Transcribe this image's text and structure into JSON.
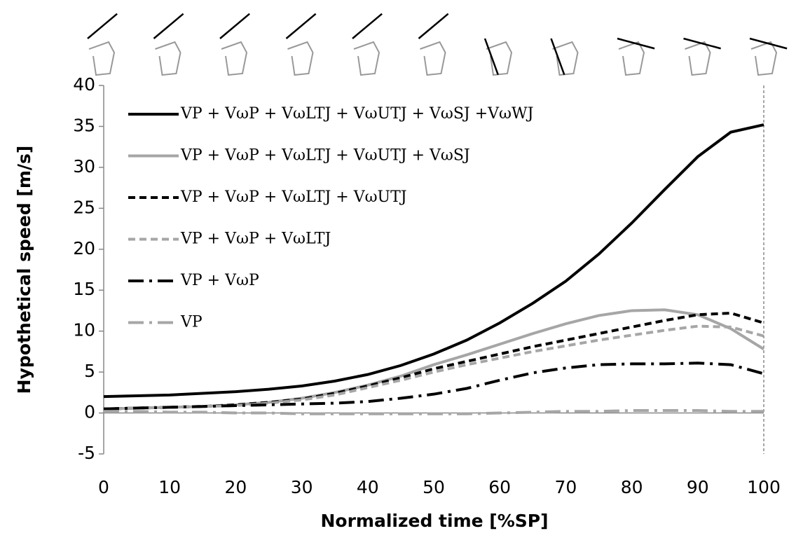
{
  "chart_data": {
    "type": "line",
    "xlabel": "Normalized time [%SP]",
    "ylabel": "Hypothetical speed [m/s]",
    "x": [
      0,
      5,
      10,
      15,
      20,
      25,
      30,
      35,
      40,
      45,
      50,
      55,
      60,
      65,
      70,
      75,
      80,
      85,
      90,
      95,
      100
    ],
    "xlim": [
      0,
      100
    ],
    "xticks": [
      0,
      10,
      20,
      30,
      40,
      50,
      60,
      70,
      80,
      90,
      100
    ],
    "ylim": [
      -5,
      40
    ],
    "yticks": [
      -5,
      0,
      5,
      10,
      15,
      20,
      25,
      30,
      35,
      40
    ],
    "legend": "upper left",
    "series": [
      {
        "name": "VP + VωP + VωLTJ + VωUTJ + VωSJ +VωWJ",
        "color": "#000000",
        "dash": "solid",
        "values": [
          2,
          2.1,
          2.2,
          2.4,
          2.6,
          2.9,
          3.3,
          3.9,
          4.7,
          5.8,
          7.2,
          8.9,
          11,
          13.4,
          16.1,
          19.4,
          23.2,
          27.3,
          31.3,
          34.3,
          35.2
        ]
      },
      {
        "name": "VP + VωP + VωLTJ + VωUTJ + VωSJ",
        "color": "#a6a6a6",
        "dash": "solid",
        "values": [
          0.5,
          0.6,
          0.7,
          0.8,
          1.0,
          1.3,
          1.8,
          2.5,
          3.4,
          4.5,
          5.9,
          7.1,
          8.4,
          9.7,
          10.9,
          11.9,
          12.5,
          12.6,
          12.0,
          10.3,
          7.8
        ]
      },
      {
        "name": "VP + VωP + VωLTJ + VωUTJ",
        "color": "#000000",
        "dash": "dashed",
        "values": [
          0.5,
          0.6,
          0.7,
          0.8,
          1.0,
          1.3,
          1.7,
          2.4,
          3.3,
          4.3,
          5.4,
          6.3,
          7.2,
          8.1,
          8.9,
          9.7,
          10.5,
          11.3,
          12.0,
          12.2,
          11.0
        ]
      },
      {
        "name": "VP + VωP + VωLTJ",
        "color": "#a6a6a6",
        "dash": "dashed",
        "values": [
          0.5,
          0.6,
          0.7,
          0.8,
          0.9,
          1.2,
          1.6,
          2.2,
          3.1,
          4.0,
          5.0,
          5.9,
          6.7,
          7.5,
          8.2,
          8.9,
          9.5,
          10.1,
          10.6,
          10.5,
          9.4
        ]
      },
      {
        "name": "VP + VωP",
        "color": "#000000",
        "dash": "dashdot",
        "values": [
          0.5,
          0.6,
          0.7,
          0.8,
          0.9,
          1.0,
          1.1,
          1.2,
          1.4,
          1.8,
          2.3,
          3.0,
          4.0,
          4.9,
          5.5,
          5.9,
          6.0,
          6.0,
          6.1,
          5.9,
          4.8
        ]
      },
      {
        "name": "VP",
        "color": "#a6a6a6",
        "dash": "dashdot",
        "values": [
          0.2,
          0.2,
          0.1,
          0.1,
          0,
          0,
          -0.1,
          -0.1,
          -0.1,
          -0.1,
          -0.1,
          -0.1,
          0,
          0.1,
          0.2,
          0.2,
          0.3,
          0.3,
          0.3,
          0.2,
          0.2
        ]
      }
    ]
  }
}
